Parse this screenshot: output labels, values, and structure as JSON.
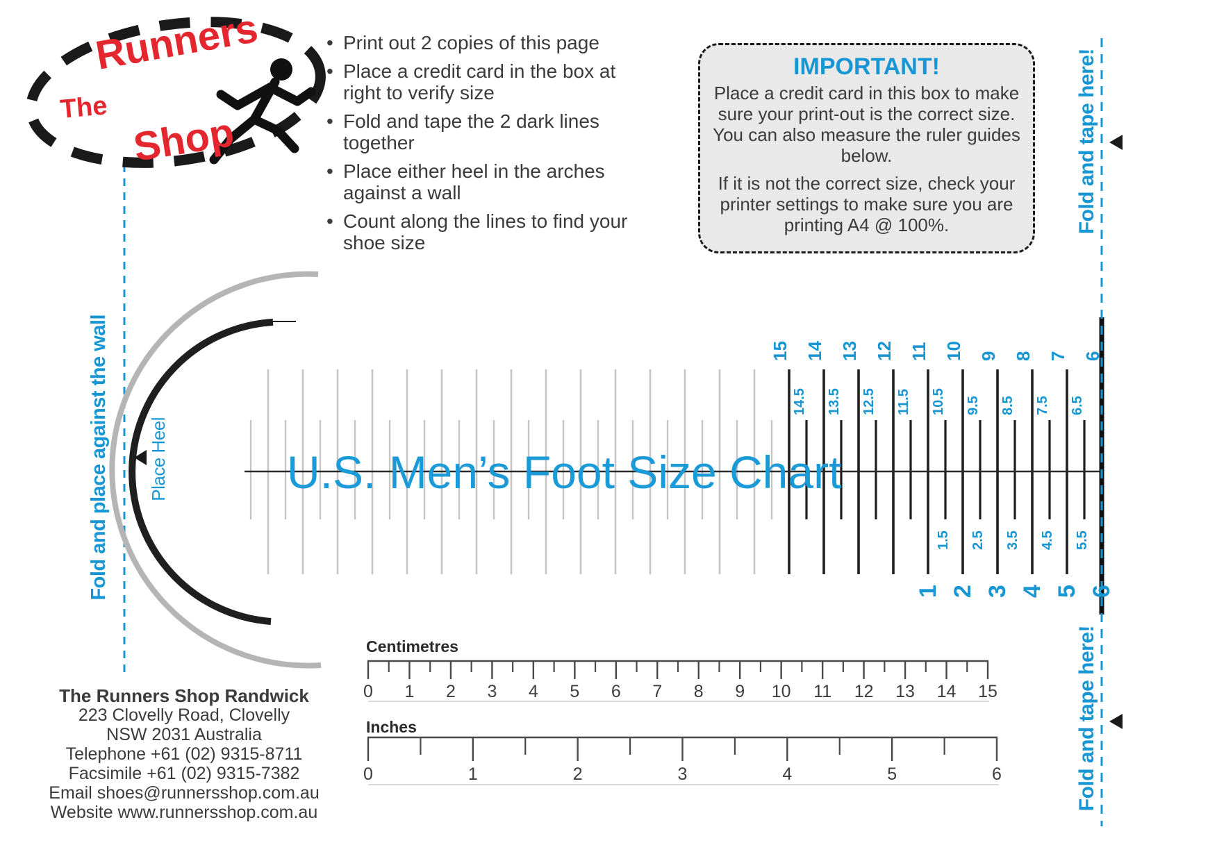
{
  "colors": {
    "blue": "#1796d3",
    "red": "#e4272e",
    "black": "#1f1f1f",
    "gray_line": "#c5c5c5",
    "gray_arc": "#b5b5b5",
    "box_bg": "#e9e9e9",
    "body_text": "#3b3b3b"
  },
  "logo": {
    "word_the": "The",
    "word_runners": "Runners",
    "word_shop": "Shop"
  },
  "instructions": [
    "Print out 2 copies of this page",
    "Place a credit card in the box at right to verify size",
    "Fold and tape the 2 dark lines together",
    "Place either heel in the arches against a wall",
    "Count along the lines to find your shoe size"
  ],
  "important": {
    "title": "IMPORTANT!",
    "p1": "Place a credit card in this box to make sure your print-out is the correct size. You can also measure the ruler guides below.",
    "p2": "If it is not the correct size, check your printer settings to make sure you are printing A4 @ 100%."
  },
  "side_labels": {
    "fold_tape": "Fold and tape here!",
    "wall": "Fold and place against the wall",
    "place_heel": "Place Heel"
  },
  "chart_data": {
    "type": "ruler",
    "title": "U.S. Men’s Foot Size Chart",
    "description": "Dual foot-length scale; fold line at right edge shared by both scales",
    "top_scale": {
      "whole": [
        "15",
        "14",
        "13",
        "12",
        "11",
        "10",
        "9",
        "8",
        "7",
        "6"
      ],
      "half": [
        "14.5",
        "13.5",
        "12.5",
        "11.5",
        "10.5",
        "9.5",
        "8.5",
        "7.5",
        "6.5"
      ]
    },
    "bottom_scale": {
      "whole": [
        "1",
        "2",
        "3",
        "4",
        "5",
        "6"
      ],
      "half": [
        "1.5",
        "2.5",
        "3.5",
        "4.5",
        "5.5"
      ]
    },
    "unlabeled_gray_lines": {
      "whole": 15,
      "half": 16
    }
  },
  "rulers": {
    "centimetres": {
      "label": "Centimetres",
      "ticks": [
        "0",
        "1",
        "2",
        "3",
        "4",
        "5",
        "6",
        "7",
        "8",
        "9",
        "10",
        "11",
        "12",
        "13",
        "14",
        "15"
      ]
    },
    "inches": {
      "label": "Inches",
      "ticks": [
        "0",
        "1",
        "2",
        "3",
        "4",
        "5",
        "6"
      ]
    }
  },
  "address": {
    "name": "The Runners Shop Randwick",
    "lines": [
      "223 Clovelly Road, Clovelly",
      "NSW 2031 Australia",
      "Telephone +61 (02) 9315-8711",
      "Facsimile +61 (02) 9315-7382",
      "Email shoes@runnersshop.com.au",
      "Website www.runnersshop.com.au"
    ]
  }
}
